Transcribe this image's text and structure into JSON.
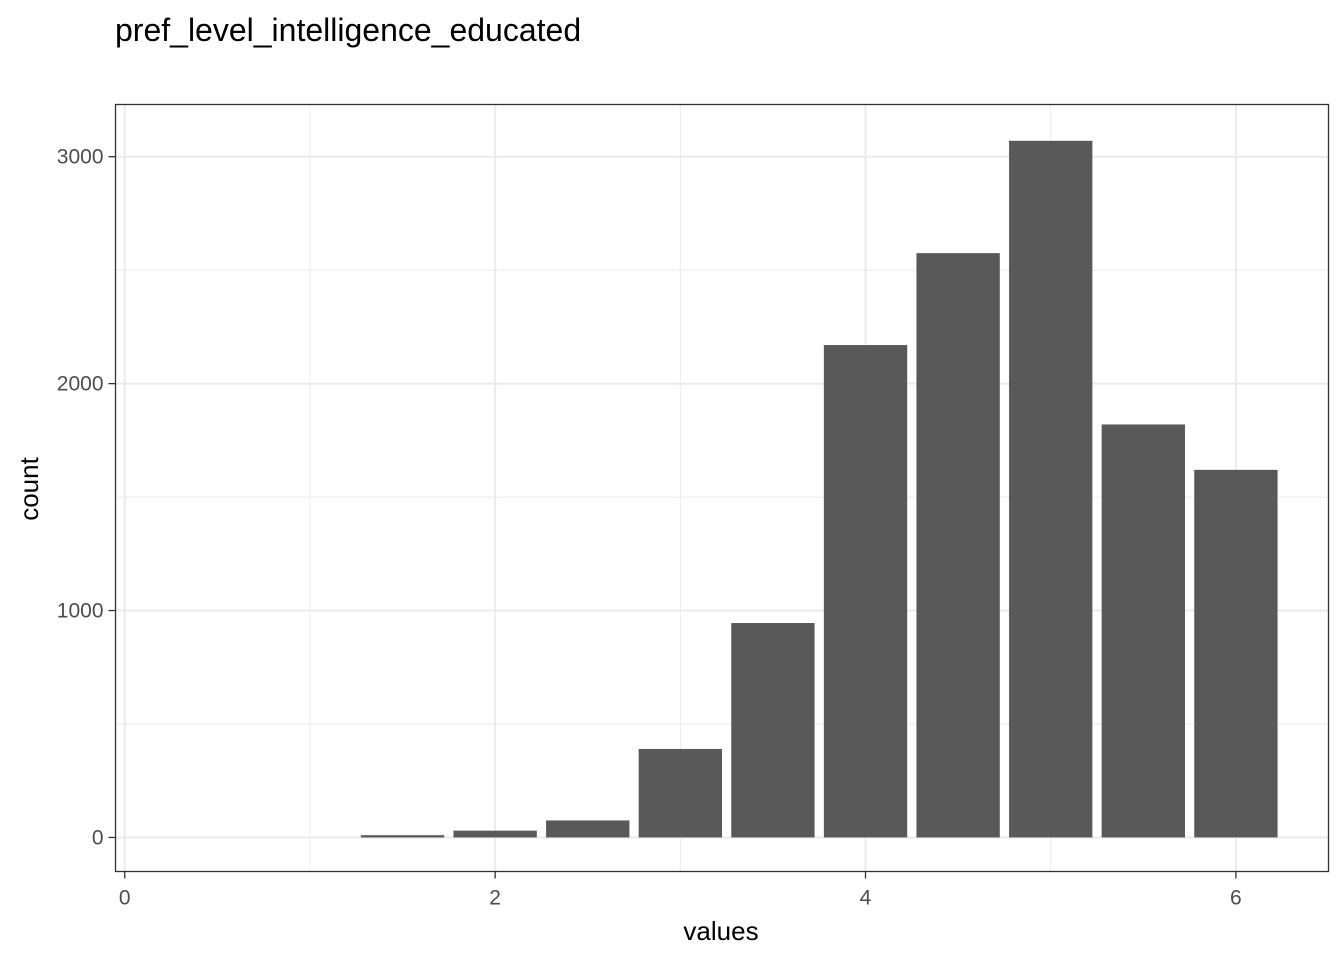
{
  "chart_data": {
    "type": "bar",
    "title": "pref_level_intelligence_educated",
    "xlabel": "values",
    "ylabel": "count",
    "x": [
      1.5,
      2.0,
      2.5,
      3.0,
      3.5,
      4.0,
      4.5,
      5.0,
      5.5,
      6.0
    ],
    "values": [
      10,
      30,
      75,
      390,
      945,
      2170,
      2575,
      3070,
      1820,
      1620
    ],
    "bin_width": 0.45,
    "xlim": [
      -0.05,
      6.5
    ],
    "ylim": [
      -150,
      3230
    ],
    "x_ticks": [
      0,
      2,
      4,
      6
    ],
    "x_tick_labels": [
      "0",
      "2",
      "4",
      "6"
    ],
    "y_ticks": [
      0,
      1000,
      2000,
      3000
    ],
    "y_tick_labels": [
      "0",
      "1000",
      "2000",
      "3000"
    ],
    "grid": true,
    "bar_color": "#595959",
    "grid_color": "#ebebeb",
    "panel_border_color": "#333333"
  }
}
